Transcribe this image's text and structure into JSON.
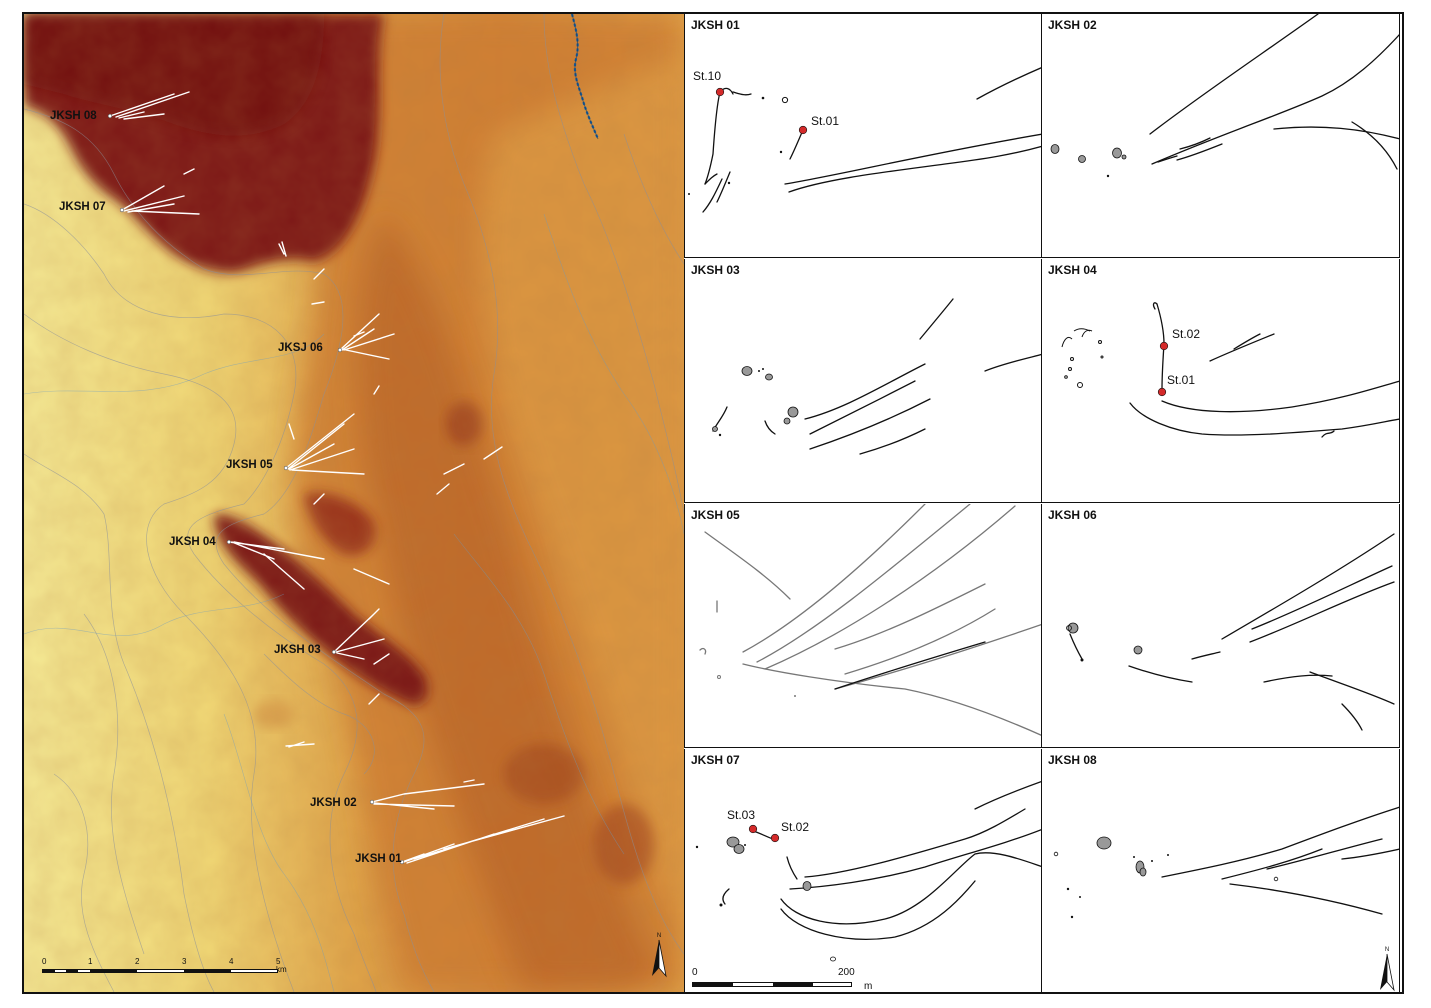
{
  "map": {
    "sites": [
      {
        "id": "jksh-08",
        "label": "JKSH 08"
      },
      {
        "id": "jksh-07",
        "label": "JKSH 07"
      },
      {
        "id": "jksj-06",
        "label": "JKSJ 06"
      },
      {
        "id": "jksh-05",
        "label": "JKSH 05"
      },
      {
        "id": "jksh-04",
        "label": "JKSH 04"
      },
      {
        "id": "jksh-03",
        "label": "JKSH 03"
      },
      {
        "id": "jksh-02",
        "label": "JKSH 02"
      },
      {
        "id": "jksh-01",
        "label": "JKSH 01"
      }
    ],
    "scale": {
      "ticks": [
        "0",
        "1",
        "2",
        "3",
        "4",
        "5 km"
      ]
    },
    "north_arrow_label": "N",
    "colors": {
      "high": "#7a1414",
      "mid": "#c06a28",
      "low": "#eed56e",
      "flat": "#f4e891",
      "river": "#1a5fa0"
    }
  },
  "insets": [
    {
      "title": "JKSH 01",
      "stations": [
        "St.10",
        "St.01"
      ]
    },
    {
      "title": "JKSH 02",
      "stations": []
    },
    {
      "title": "JKSH 03",
      "stations": []
    },
    {
      "title": "JKSH 04",
      "stations": [
        "St.02",
        "St.01"
      ]
    },
    {
      "title": "JKSH 05",
      "stations": []
    },
    {
      "title": "JKSH 06",
      "stations": []
    },
    {
      "title": "JKSH 07",
      "stations": [
        "St.03",
        "St.02"
      ]
    },
    {
      "title": "JKSH 08",
      "stations": []
    }
  ],
  "inset_scale": {
    "start": "0",
    "end": "200",
    "unit": "m"
  },
  "station_color": "#d42a2a"
}
